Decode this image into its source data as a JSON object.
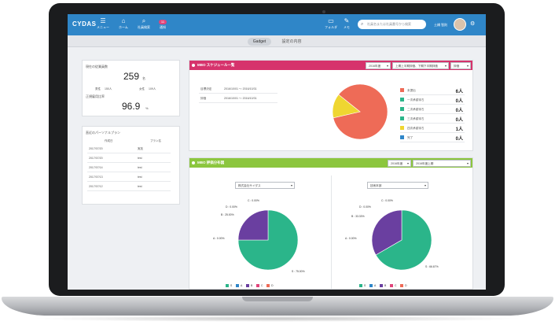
{
  "header": {
    "logo": "CYDAS",
    "nav": [
      {
        "label": "メニュー",
        "icon": "menu-icon",
        "glyph": "☰"
      },
      {
        "label": "ホーム",
        "icon": "home-icon",
        "glyph": "⌂"
      },
      {
        "label": "社員検索",
        "icon": "search-icon",
        "glyph": "⌕"
      },
      {
        "label": "通知",
        "icon": "bell-icon",
        "badge": "11"
      }
    ],
    "tools": [
      {
        "label": "フォルダ",
        "icon": "folder-icon",
        "glyph": "▭"
      },
      {
        "label": "メモ",
        "icon": "memo-icon",
        "glyph": "✎"
      }
    ],
    "search_placeholder": "社員名または社員番号から検索",
    "user_name": "土橋 智則"
  },
  "tabs": [
    {
      "label": "Gadget",
      "active": true
    },
    {
      "label": "設定の内容",
      "active": false
    }
  ],
  "employees": {
    "label": "現在の従業員数",
    "count": "259",
    "count_unit": "名",
    "male_label": "男性",
    "male_value": "150人",
    "female_label": "女性",
    "female_value": "109人",
    "rate_label": "正規雇用比率",
    "rate": "96.9",
    "rate_unit": "%"
  },
  "personal_plan": {
    "title": "直近のパーソナルプラン",
    "col_date": "作成日",
    "col_plan": "プラン名",
    "rows": [
      {
        "date": "2017/07/20",
        "plan": "実技"
      },
      {
        "date": "2017/07/20",
        "plan": "test"
      },
      {
        "date": "2017/07/14",
        "plan": "test"
      },
      {
        "date": "2017/07/13",
        "plan": "test"
      },
      {
        "date": "2017/07/12",
        "plan": "test"
      }
    ]
  },
  "mbo_schedule": {
    "title": "MBO スケジュール一覧",
    "color": "#d6336c",
    "selects": [
      "2016年度",
      "上期上半期評価、下期下半期評価",
      "評価"
    ],
    "rows": [
      {
        "label": "目標決定",
        "range": "2016/10/01 〜 2016/10/31"
      },
      {
        "label": "評価",
        "range": "2016/10/01 〜 2016/10/31"
      }
    ],
    "legend": [
      {
        "label": "未提出",
        "value": "6人",
        "color": "#ee6b57"
      },
      {
        "label": "一次承認待ち",
        "value": "0人",
        "color": "#2bb58a"
      },
      {
        "label": "二次承認待ち",
        "value": "0人",
        "color": "#2bb58a"
      },
      {
        "label": "三次承認待ち",
        "value": "0人",
        "color": "#2bb58a"
      },
      {
        "label": "四次承認待ち",
        "value": "1人",
        "color": "#efd631"
      },
      {
        "label": "完了",
        "value": "0人",
        "color": "#2f86c8"
      }
    ]
  },
  "mbo_distribution": {
    "title": "MBO 評価分布図",
    "color": "#8cc63e",
    "selects": [
      "2016年度",
      "2016年度上期"
    ],
    "charts": [
      {
        "select": "株式会社サイダス",
        "labels": {
          "C": "C : 0.00%",
          "D": "D : 0.00%",
          "B": "B : 25.00%",
          "A": "A : 0.00%",
          "S": "S : 75.00%"
        }
      },
      {
        "select": "技術本部",
        "labels": {
          "C": "C : 0.00%",
          "D": "D : 0.00%",
          "B": "B : 33.33%",
          "A": "A : 0.00%",
          "S": "S : 66.67%"
        }
      }
    ],
    "legend": [
      "S",
      "A",
      "B",
      "C",
      "D"
    ]
  },
  "chart_data": [
    {
      "type": "pie",
      "categories": [
        "未提出",
        "一次承認待ち",
        "二次承認待ち",
        "三次承認待ち",
        "四次承認待ち",
        "完了"
      ],
      "values": [
        6,
        0,
        0,
        0,
        1,
        0
      ],
      "colors": [
        "#ee6b57",
        "#2bb58a",
        "#2bb58a",
        "#2bb58a",
        "#efd631",
        "#2f86c8"
      ]
    },
    {
      "type": "pie",
      "categories": [
        "S",
        "A",
        "B",
        "C",
        "D"
      ],
      "values": [
        75,
        0,
        25,
        0,
        0
      ],
      "colors": [
        "#2bb58a",
        "#2f86c8",
        "#6a3fa0",
        "#e0457b",
        "#ee6b57"
      ],
      "legend": "bottom"
    },
    {
      "type": "pie",
      "categories": [
        "S",
        "A",
        "B",
        "C",
        "D"
      ],
      "values": [
        66.67,
        0,
        33.33,
        0,
        0
      ],
      "colors": [
        "#2bb58a",
        "#2f86c8",
        "#6a3fa0",
        "#e0457b",
        "#ee6b57"
      ],
      "legend": "bottom"
    }
  ]
}
